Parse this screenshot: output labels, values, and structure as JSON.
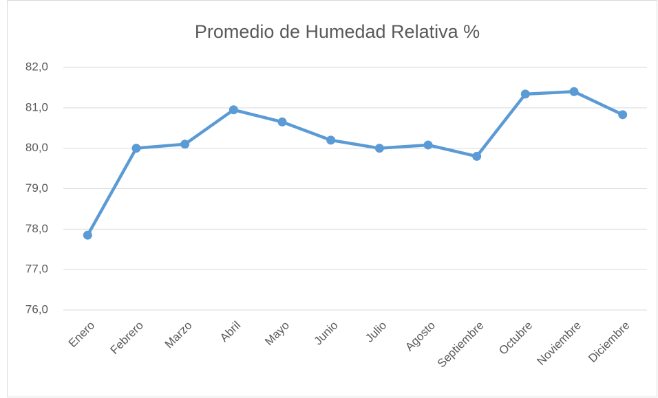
{
  "chart_data": {
    "type": "line",
    "title": "Promedio de Humedad Relativa %",
    "categories": [
      "Enero",
      "Febrero",
      "Marzo",
      "Abril",
      "Mayo",
      "Junio",
      "Julio",
      "Agosto",
      "Septiembre",
      "Octubre",
      "Noviembre",
      "Diciembre"
    ],
    "values": [
      77.85,
      80.0,
      80.1,
      80.95,
      80.65,
      80.2,
      80.0,
      80.08,
      79.8,
      81.34,
      81.4,
      80.83
    ],
    "color": "#5b9bd5",
    "ylim": [
      76,
      82
    ],
    "yticks": [
      {
        "value": 76,
        "label": "76,0"
      },
      {
        "value": 77,
        "label": "77,0"
      },
      {
        "value": 78,
        "label": "78,0"
      },
      {
        "value": 79,
        "label": "79,0"
      },
      {
        "value": 80,
        "label": "80,0"
      },
      {
        "value": 81,
        "label": "81,0"
      },
      {
        "value": 82,
        "label": "82,0"
      }
    ],
    "grid": true
  }
}
